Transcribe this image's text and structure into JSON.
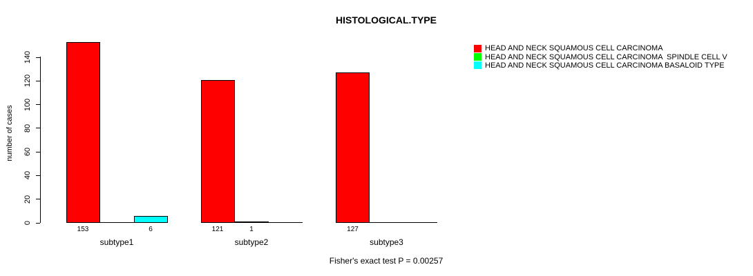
{
  "chart_data": {
    "type": "bar",
    "title": "HISTOLOGICAL.TYPE",
    "xlabel": "",
    "ylabel": "number of cases",
    "ylim": [
      0,
      140
    ],
    "yticks": [
      0,
      20,
      40,
      60,
      80,
      100,
      120,
      140
    ],
    "grid": false,
    "legend_position": "top-right",
    "annotation": "Fisher's exact test P = 0.00257",
    "categories": [
      "subtype1",
      "subtype2",
      "subtype3"
    ],
    "series": [
      {
        "name": "HEAD AND NECK SQUAMOUS CELL CARCINOMA",
        "color": "#FF0000",
        "values": [
          153,
          121,
          127
        ]
      },
      {
        "name": "HEAD AND NECK SQUAMOUS CELL CARCINOMA  SPINDLE CELL V",
        "color": "#00FF00",
        "values": [
          0,
          1,
          0
        ]
      },
      {
        "name": "HEAD AND NECK SQUAMOUS CELL CARCINOMA BASALOID TYPE",
        "color": "#00FFFF",
        "values": [
          6,
          0,
          0
        ]
      }
    ]
  }
}
